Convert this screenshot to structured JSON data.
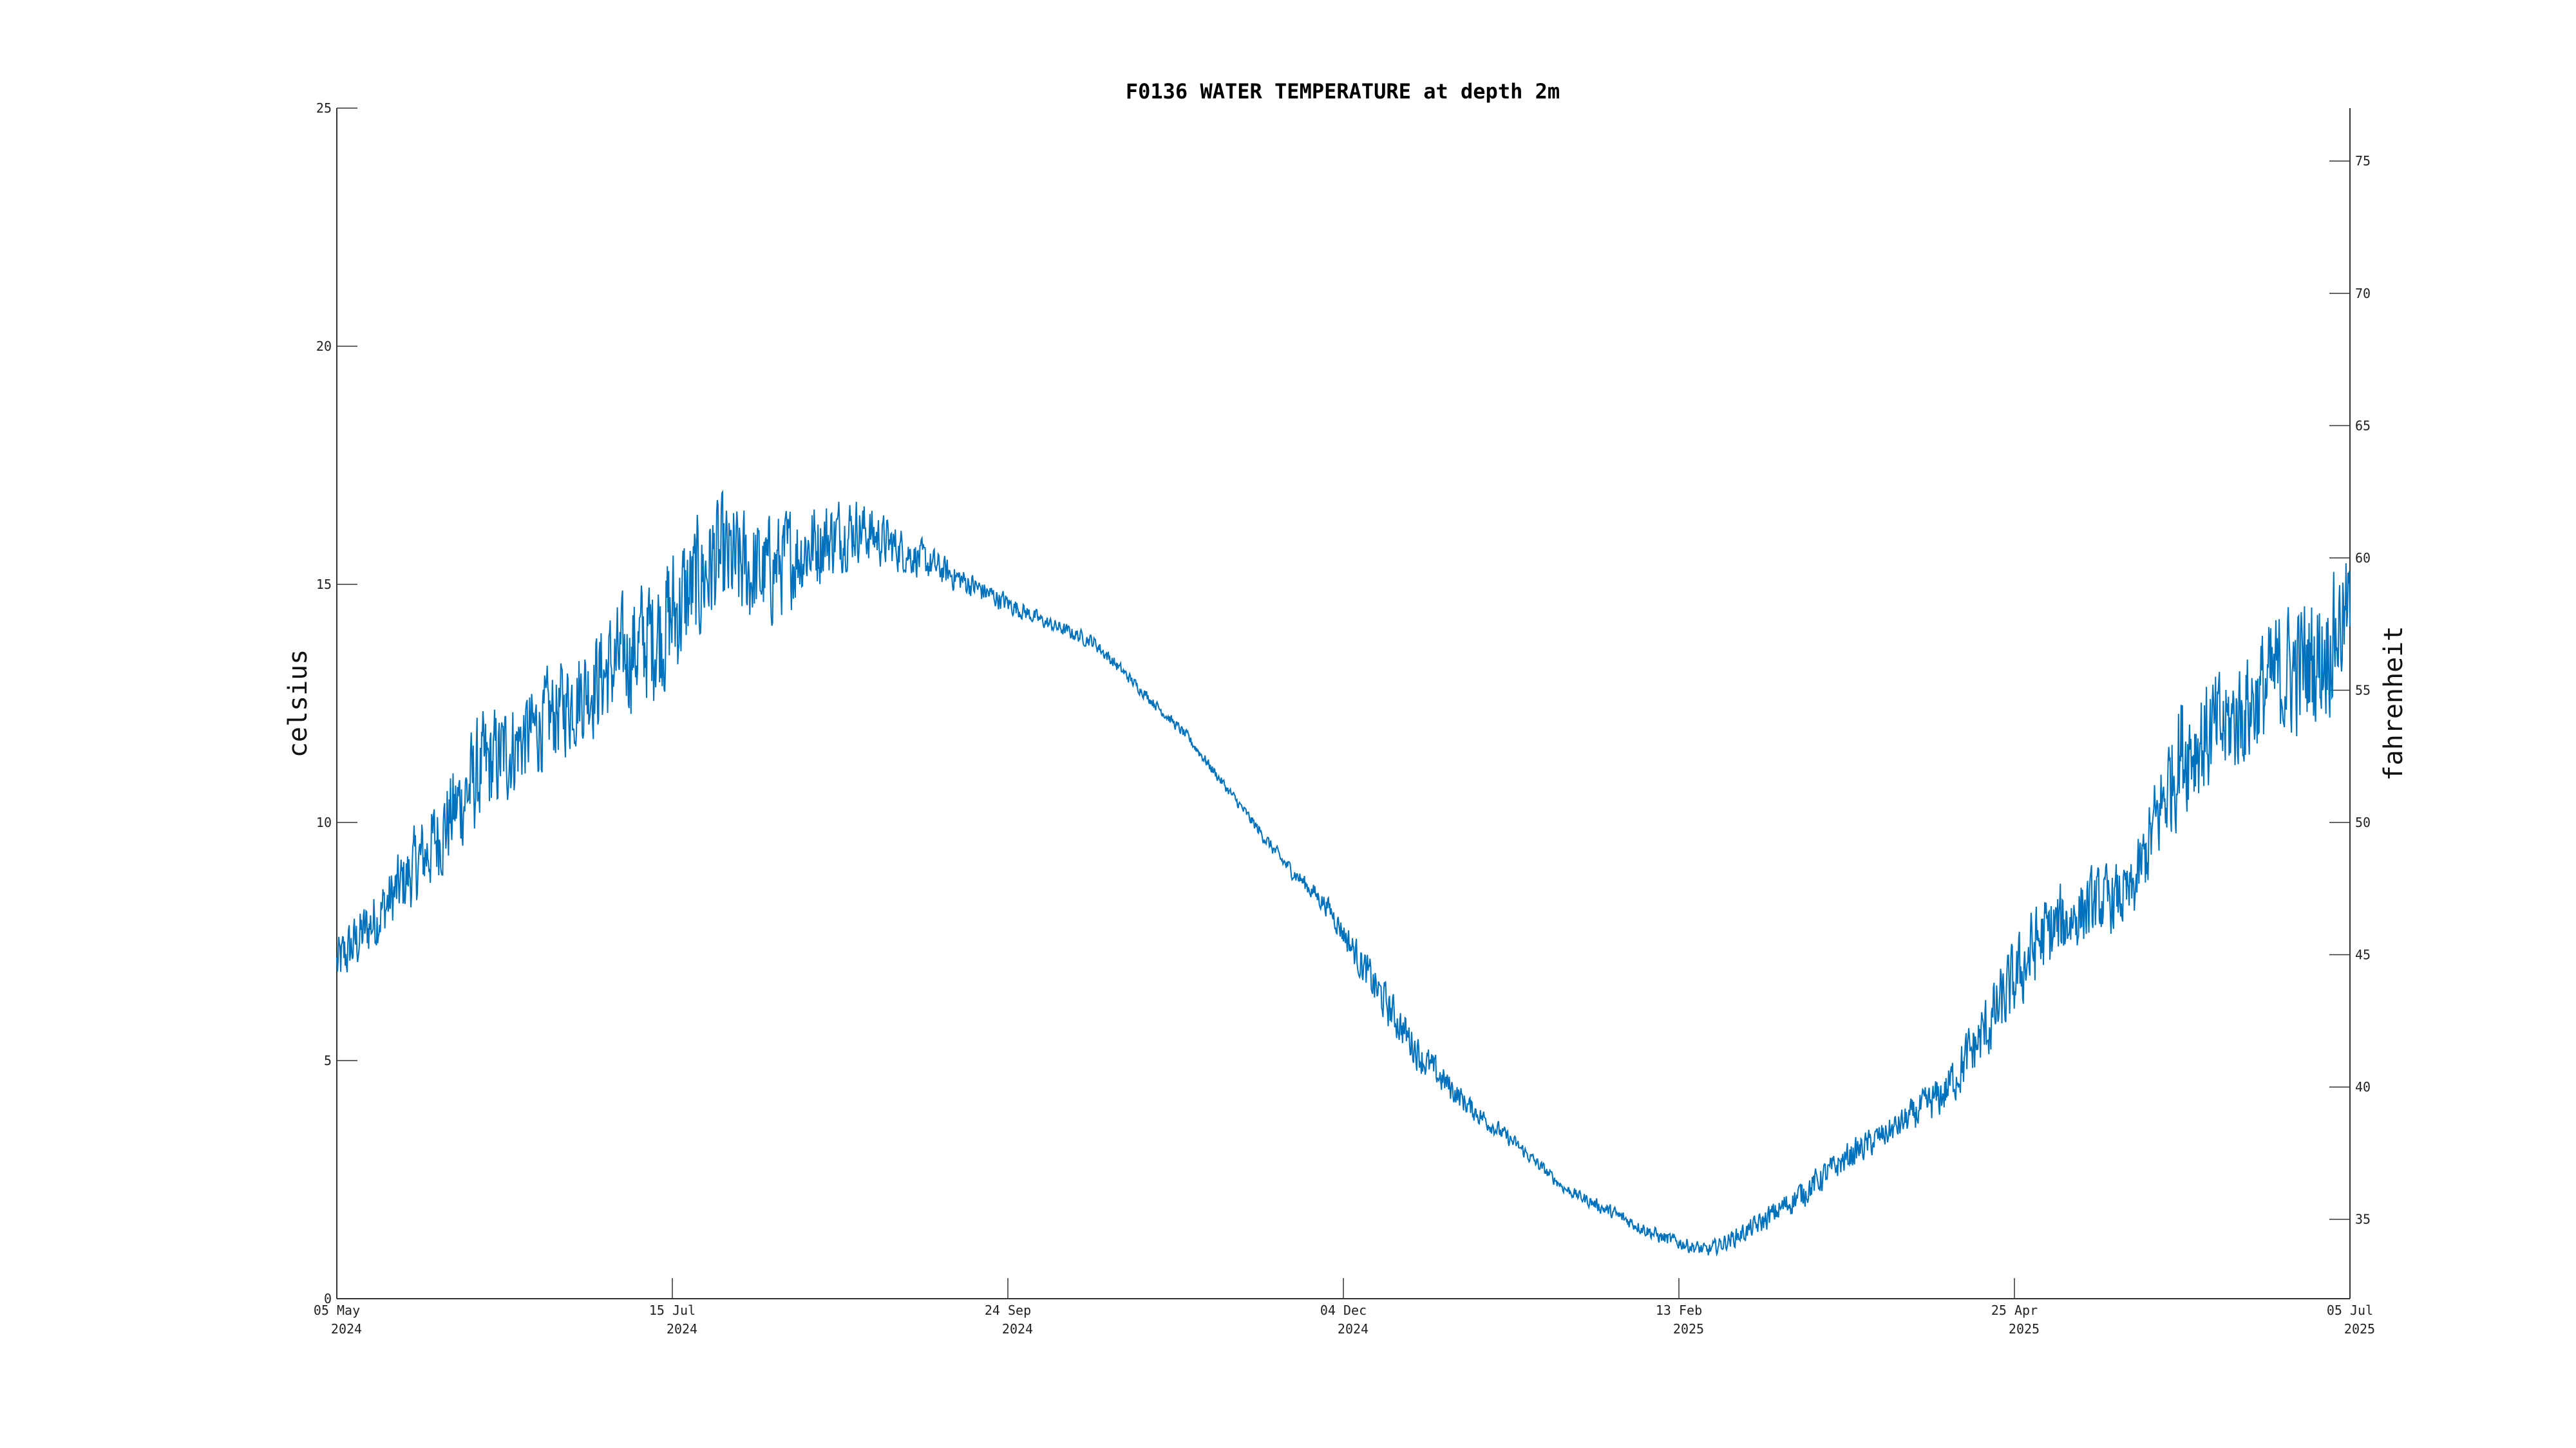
{
  "chart_data": {
    "type": "line",
    "title": "F0136 WATER TEMPERATURE at depth 2m",
    "ylabel": "celsius",
    "y2label": "fahrenheit",
    "ylim": [
      0,
      25
    ],
    "y2lim": [
      32,
      77
    ],
    "yticks": [
      0,
      5,
      10,
      15,
      20,
      25
    ],
    "y2ticks": [
      35,
      40,
      45,
      50,
      55,
      60,
      65,
      70,
      75
    ],
    "xlim": [
      "2024-05-05",
      "2025-07-05"
    ],
    "xticks": [
      {
        "date": "2024-05-05",
        "line1": "05 May",
        "line2": "2024"
      },
      {
        "date": "2024-07-15",
        "line1": "15 Jul",
        "line2": "2024"
      },
      {
        "date": "2024-09-24",
        "line1": "24 Sep",
        "line2": "2024"
      },
      {
        "date": "2024-12-04",
        "line1": "04 Dec",
        "line2": "2024"
      },
      {
        "date": "2025-02-13",
        "line1": "13 Feb",
        "line2": "2025"
      },
      {
        "date": "2025-04-25",
        "line1": "25 Apr",
        "line2": "2025"
      },
      {
        "date": "2025-07-05",
        "line1": "05 Jul",
        "line2": "2025"
      }
    ],
    "grid": false,
    "series_color": "#0072bd",
    "series": [
      {
        "x": [
          "2024-05-05",
          "2024-05-15",
          "2024-05-25",
          "2024-06-04",
          "2024-06-14",
          "2024-06-24",
          "2024-07-04",
          "2024-07-14",
          "2024-07-24",
          "2024-08-03",
          "2024-08-13",
          "2024-08-23",
          "2024-09-02",
          "2024-09-12",
          "2024-09-22",
          "2024-10-02",
          "2024-10-12",
          "2024-10-22",
          "2024-11-01",
          "2024-11-11",
          "2024-11-21",
          "2024-12-01",
          "2024-12-11",
          "2024-12-21",
          "2024-12-31",
          "2025-01-10",
          "2025-01-20",
          "2025-01-30",
          "2025-02-09",
          "2025-02-19",
          "2025-03-01",
          "2025-03-11",
          "2025-03-21",
          "2025-03-31",
          "2025-04-10",
          "2025-04-20",
          "2025-04-30",
          "2025-05-10",
          "2025-05-20",
          "2025-05-30",
          "2025-06-09",
          "2025-06-19",
          "2025-06-29",
          "2025-07-05"
        ],
        "y": [
          7.0,
          8.2,
          9.5,
          11.0,
          11.8,
          12.6,
          13.4,
          14.2,
          15.5,
          15.2,
          15.8,
          16.2,
          15.7,
          15.2,
          14.7,
          14.2,
          13.8,
          12.8,
          11.8,
          10.5,
          9.2,
          8.2,
          6.5,
          5.0,
          4.0,
          3.2,
          2.3,
          1.8,
          1.3,
          1.0,
          1.5,
          2.2,
          3.0,
          3.6,
          4.3,
          5.8,
          7.5,
          8.2,
          8.5,
          11.5,
          12.0,
          13.0,
          13.5,
          14.5
        ],
        "noise": [
          0.8,
          0.9,
          1.2,
          1.6,
          1.3,
          1.4,
          1.6,
          2.0,
          1.8,
          1.6,
          1.3,
          0.9,
          0.6,
          0.4,
          0.3,
          0.2,
          0.2,
          0.15,
          0.15,
          0.15,
          0.2,
          0.3,
          0.6,
          0.5,
          0.3,
          0.2,
          0.15,
          0.2,
          0.2,
          0.2,
          0.3,
          0.4,
          0.4,
          0.4,
          0.6,
          1.0,
          1.2,
          1.0,
          0.9,
          1.8,
          1.6,
          1.8,
          2.0,
          1.6
        ]
      }
    ]
  }
}
